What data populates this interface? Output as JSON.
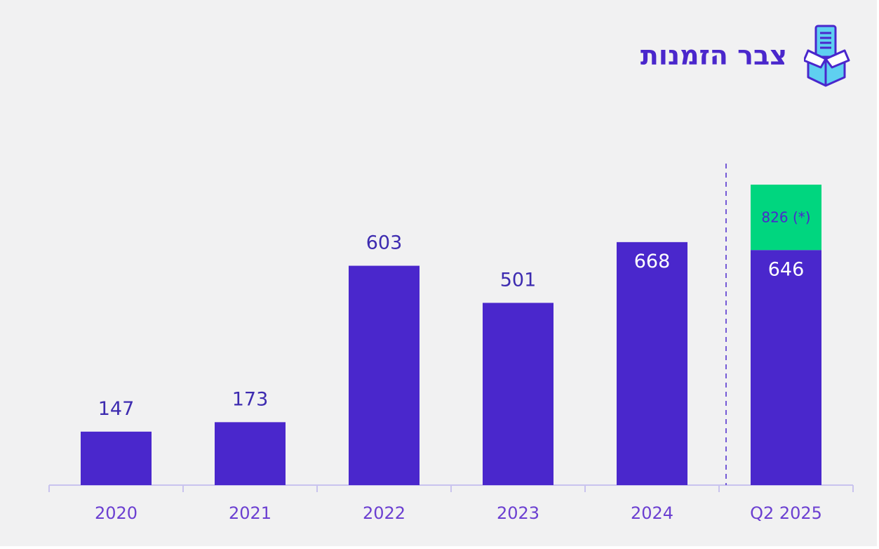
{
  "header": {
    "title": "צבר הזמנות",
    "icon": "open-box-with-document-icon"
  },
  "colors": {
    "bar": "#4a27cc",
    "highlight": "#00d67f",
    "axis_text": "#6b3fd1",
    "value_text_outside": "#3d2bb0",
    "value_text_inside": "#ffffff",
    "background": "#f1f1f2"
  },
  "chart_data": {
    "type": "bar",
    "categories": [
      "2020",
      "2021",
      "2022",
      "2023",
      "2024",
      "Q2 2025"
    ],
    "values": [
      147,
      173,
      603,
      501,
      668,
      646
    ],
    "value_labels": [
      "147",
      "173",
      "603",
      "501",
      "668",
      "646"
    ],
    "stacked_segment": {
      "category": "Q2 2025",
      "total": 826,
      "label": "826 (*)"
    },
    "title": "",
    "xlabel": "",
    "ylabel": "",
    "ylim": [
      0,
      826
    ],
    "grid": false,
    "legend": "none",
    "separator_before": "Q2 2025"
  }
}
